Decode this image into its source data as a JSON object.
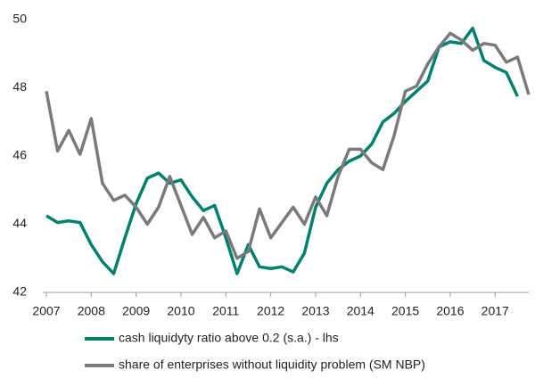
{
  "chart_data": {
    "type": "line",
    "x": [
      2007,
      2007.25,
      2007.5,
      2007.75,
      2008,
      2008.25,
      2008.5,
      2008.75,
      2009,
      2009.25,
      2009.5,
      2009.75,
      2010,
      2010.25,
      2010.5,
      2010.75,
      2011,
      2011.25,
      2011.5,
      2011.75,
      2012,
      2012.25,
      2012.5,
      2012.75,
      2013,
      2013.25,
      2013.5,
      2013.75,
      2014,
      2014.25,
      2014.5,
      2014.75,
      2015,
      2015.25,
      2015.5,
      2015.75,
      2016,
      2016.25,
      2016.5,
      2016.75,
      2017,
      2017.25,
      2017.5,
      2017.75
    ],
    "series": [
      {
        "name": "cash liquidyty ratio above 0.2 (s.a.) - lhs",
        "color": "#00806e",
        "values": [
          44.25,
          44.05,
          44.1,
          44.05,
          43.4,
          42.9,
          42.55,
          43.6,
          44.6,
          45.35,
          45.5,
          45.2,
          45.3,
          44.8,
          44.4,
          44.55,
          43.6,
          42.55,
          43.4,
          42.75,
          42.7,
          42.75,
          42.6,
          43.15,
          44.5,
          45.2,
          45.6,
          45.85,
          46.0,
          46.35,
          47.0,
          47.25,
          47.6,
          47.9,
          48.2,
          49.2,
          49.35,
          49.3,
          49.75,
          48.8,
          48.6,
          48.45,
          47.75,
          null
        ]
      },
      {
        "name": "share of enterprises without liquidity problem (SM NBP)",
        "color": "#7a7a7a",
        "values": [
          47.9,
          46.15,
          46.75,
          46.05,
          47.1,
          45.2,
          44.7,
          44.85,
          44.5,
          44.0,
          44.5,
          45.4,
          44.55,
          43.7,
          44.2,
          43.6,
          43.8,
          43.0,
          43.2,
          44.45,
          43.6,
          44.05,
          44.5,
          44.0,
          44.8,
          44.25,
          45.4,
          46.2,
          46.2,
          45.8,
          45.6,
          46.6,
          47.9,
          48.05,
          48.7,
          49.2,
          49.6,
          49.4,
          49.1,
          49.3,
          49.25,
          48.75,
          48.9,
          47.8
        ]
      }
    ],
    "xlim": [
      2007,
      2017.75
    ],
    "xticks": [
      2007,
      2008,
      2009,
      2010,
      2011,
      2012,
      2013,
      2014,
      2015,
      2016,
      2017
    ],
    "ylim": [
      42,
      50
    ],
    "yticks": [
      42,
      44,
      46,
      48,
      50
    ],
    "grid": false,
    "legend": "bottom"
  }
}
